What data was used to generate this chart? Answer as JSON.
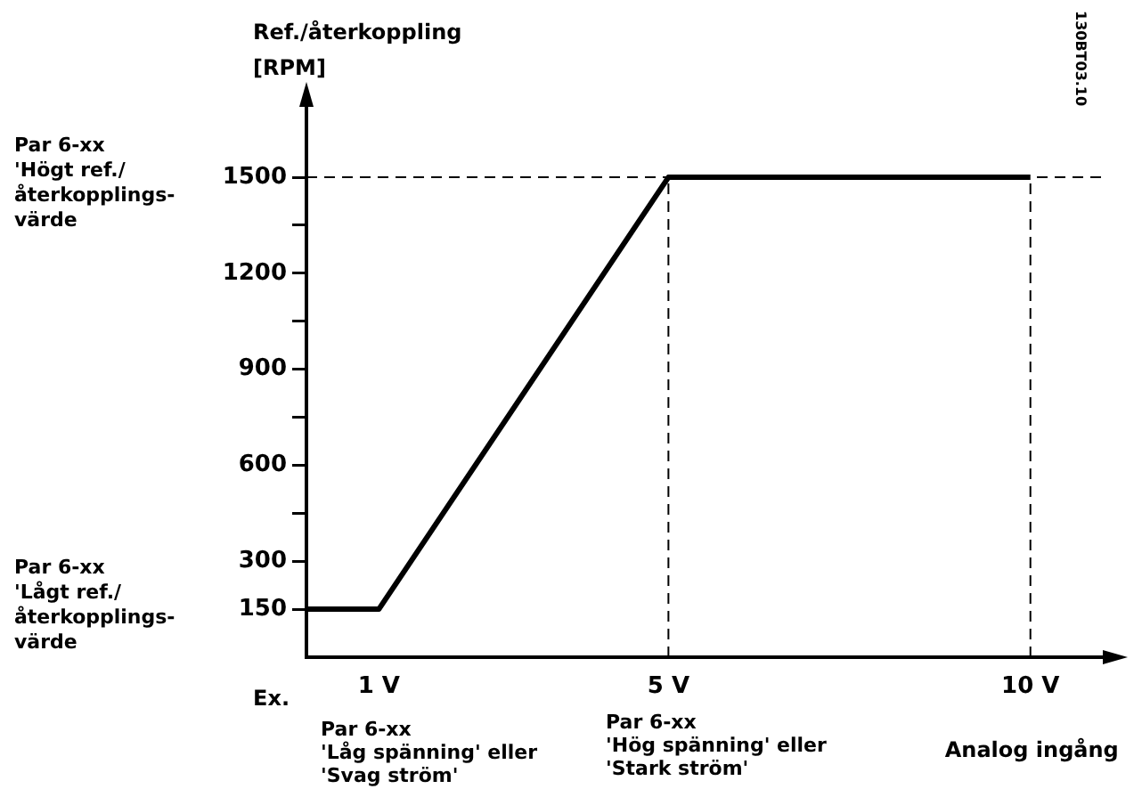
{
  "chart_data": {
    "type": "line",
    "ylabel": "Ref./återkoppling\n[RPM]",
    "xlabel": "Analog ingång",
    "x": [
      0,
      1,
      5,
      10
    ],
    "series": [
      {
        "color": "#000000",
        "values": [
          150,
          150,
          1500,
          1500
        ]
      }
    ],
    "xlim": [
      0,
      11
    ],
    "xticks": [
      {
        "value": 1,
        "label": "1 V"
      },
      {
        "value": 5,
        "label": "5 V"
      },
      {
        "value": 10,
        "label": "10 V"
      }
    ],
    "ylim": [
      0,
      1720
    ],
    "yticks": [
      150,
      300,
      {
        "value": 450,
        "label": null
      },
      600,
      {
        "value": 750,
        "label": null
      },
      900,
      {
        "value": 1050,
        "label": null
      },
      1200,
      {
        "value": 1350,
        "label": null
      },
      1500
    ],
    "ref_lines": [
      {
        "axis": "y",
        "value": 1500,
        "line_style": "dashed"
      },
      {
        "axis": "x",
        "value": 5,
        "line_style": "dashed"
      },
      {
        "axis": "x",
        "value": 10,
        "line_style": "dashed"
      }
    ],
    "annotations": [
      "Par 6-xx\n'Högt ref./\nåterkopplings-\nvärde",
      "Par 6-xx\n'Lågt ref./\nåterkopplings-\nvärde",
      "Par 6-xx\n'Låg spänning' eller\n'Svag ström'",
      "Par 6-xx\n'Hög spänning' eller\n'Stark ström'",
      "Ex.",
      "130BT03.10"
    ],
    "grid": false,
    "legend": false,
    "marker": "none",
    "line_style": "solid"
  }
}
